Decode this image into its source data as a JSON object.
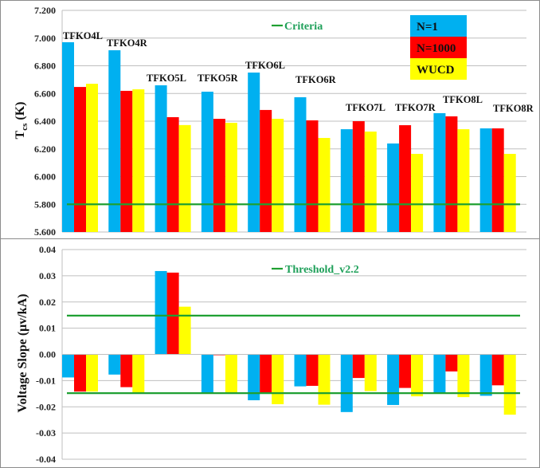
{
  "colors": {
    "n1": "#00b0f0",
    "n1000": "#ff0000",
    "wucd": "#ffff00",
    "line": "#1fa032",
    "grid": "#bfbfbf",
    "border": "#8c8c8c"
  },
  "chart_data": [
    {
      "type": "bar",
      "title": "",
      "ylabel_main": "T",
      "ylabel_sub": "cs",
      "ylabel_unit": " (K)",
      "xlabel": "",
      "ylim": [
        5.6,
        7.2
      ],
      "yticks": [
        5.6,
        5.8,
        6.0,
        6.2,
        6.4,
        6.6,
        6.8,
        7.0,
        7.2
      ],
      "ytick_labels": [
        "5.600",
        "5.800",
        "6.000",
        "6.200",
        "6.400",
        "6.600",
        "6.800",
        "7.000",
        "7.200"
      ],
      "grid": true,
      "categories": [
        "TFKO4L",
        "TFKO4R",
        "TFKO5L",
        "TFKO5R",
        "TFKO6L",
        "TFKO6R",
        "TFKO7L",
        "TFKO7R",
        "TFKO8L",
        "TFKO8R"
      ],
      "series": [
        {
          "name": "N=1",
          "color": "#00b0f0",
          "values": [
            6.97,
            6.912,
            6.659,
            6.613,
            6.751,
            6.573,
            6.342,
            6.239,
            6.458,
            6.348
          ]
        },
        {
          "name": "N=1000",
          "color": "#ff0000",
          "values": [
            6.647,
            6.619,
            6.429,
            6.417,
            6.481,
            6.406,
            6.4,
            6.371,
            6.435,
            6.348
          ]
        },
        {
          "name": "WUCD",
          "color": "#ffff00",
          "values": [
            6.67,
            6.63,
            6.372,
            6.388,
            6.417,
            6.279,
            6.325,
            6.164,
            6.342,
            6.164
          ]
        }
      ],
      "reference_lines": [
        {
          "name": "Criteria",
          "value": 5.8
        }
      ],
      "legend": {
        "line_label": "Criteria",
        "box_labels": [
          "N=1",
          "N=1000",
          "WUCD"
        ],
        "placement": "top-right"
      }
    },
    {
      "type": "bar",
      "title": "",
      "ylabel": "Voltage Slope (μv/kA)",
      "xlabel": "",
      "ylim": [
        -0.04,
        0.04
      ],
      "yticks": [
        -0.04,
        -0.03,
        -0.02,
        -0.01,
        0.0,
        0.01,
        0.02,
        0.03,
        0.04
      ],
      "ytick_labels": [
        "-0.04",
        "-0.03",
        "-0.02",
        "-0.01",
        "0.00",
        "0.01",
        "0.02",
        "0.03",
        "0.04"
      ],
      "grid": true,
      "categories": [
        "TFKO4L",
        "TFKO4R",
        "TFKO5L",
        "TFKO5R",
        "TFKO6L",
        "TFKO6R",
        "TFKO7L",
        "TFKO7R",
        "TFKO8L",
        "TFKO8R"
      ],
      "series": [
        {
          "name": "N=1",
          "color": "#00b0f0",
          "values": [
            -0.0088,
            -0.0077,
            0.0318,
            -0.0148,
            -0.0175,
            -0.0122,
            -0.022,
            -0.0193,
            -0.015,
            -0.0158
          ]
        },
        {
          "name": "N=1000",
          "color": "#ff0000",
          "values": [
            -0.0142,
            -0.0125,
            0.0312,
            -0.0003,
            -0.015,
            -0.012,
            -0.009,
            -0.0128,
            -0.0065,
            -0.0118
          ]
        },
        {
          "name": "WUCD",
          "color": "#ffff00",
          "values": [
            -0.0142,
            -0.015,
            0.0182,
            -0.0148,
            -0.019,
            -0.0192,
            -0.014,
            -0.016,
            -0.0163,
            -0.023
          ]
        }
      ],
      "reference_lines": [
        {
          "name": "Threshold_v2.2",
          "value": 0.0148
        },
        {
          "name": "Threshold_v2.2",
          "value": -0.0148
        }
      ],
      "legend": {
        "line_label": "Threshold_v2.2",
        "placement": "top-center"
      }
    }
  ]
}
